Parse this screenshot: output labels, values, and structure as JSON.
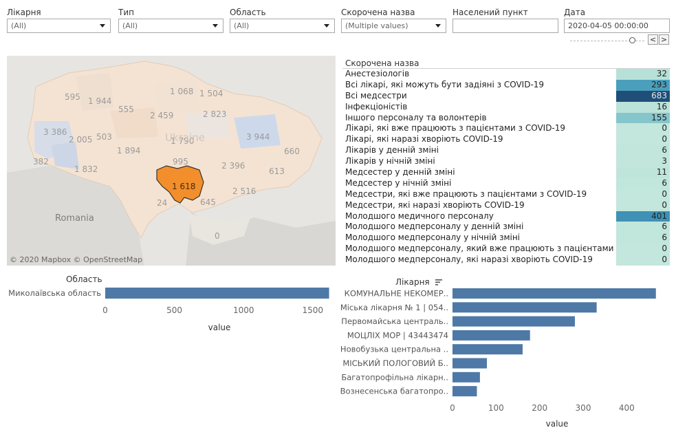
{
  "filters": [
    {
      "label": "Лікарня",
      "value": "(All)",
      "type": "dropdown"
    },
    {
      "label": "Тип",
      "value": "(All)",
      "type": "dropdown"
    },
    {
      "label": "Область",
      "value": "(All)",
      "type": "dropdown"
    },
    {
      "label": "Скорочена назва",
      "value": "(Multiple values)",
      "type": "dropdown"
    },
    {
      "label": "Населений пункт",
      "value": "",
      "type": "text"
    },
    {
      "label": "Дата",
      "value": "2020-04-05 00:00:00",
      "type": "date"
    }
  ],
  "date_nav": {
    "prev": "<",
    "next": ">"
  },
  "map": {
    "attribution": "© 2020 Mapbox © OpenStreetMap",
    "country_label": "Ukraine",
    "neighbor_label": "Romania",
    "highlight_color": "#f28e2b",
    "region_values": [
      "595",
      "1 944",
      "1 068",
      "1 504",
      "555",
      "2 459",
      "3 386",
      "2 005",
      "503",
      "2 823",
      "3 944",
      "1 894",
      "1 790",
      "382",
      "1 832",
      "995",
      "2 396",
      "660",
      "1 618",
      "613",
      "2 516",
      "24",
      "645",
      "0"
    ]
  },
  "table": {
    "header": "Скорочена назва",
    "rows": [
      {
        "label": "Анестезіологів",
        "value": "32",
        "color": "#b7e1d8"
      },
      {
        "label": "Всі лікарі, які можуть бути задіяні з COVID-19",
        "value": "293",
        "color": "#4a9fbc"
      },
      {
        "label": "Всі медсестри",
        "value": "683",
        "color": "#1f4e79"
      },
      {
        "label": "Інфекціоністів",
        "value": "16",
        "color": "#bce3d9"
      },
      {
        "label": "Іншого персоналу та волонтерів",
        "value": "155",
        "color": "#85c6cc"
      },
      {
        "label": "Лікарі, які вже працюють з пацієнтами з COVID-19",
        "value": "0",
        "color": "#c3e7dc"
      },
      {
        "label": "Лікарі, які наразі хворіють COVID-19",
        "value": "0",
        "color": "#c3e7dc"
      },
      {
        "label": "Лікарів у денній зміні",
        "value": "6",
        "color": "#c1e6db"
      },
      {
        "label": "Лікарів у нічній зміні",
        "value": "3",
        "color": "#c2e6db"
      },
      {
        "label": "Медсестер у денній зміні",
        "value": "11",
        "color": "#bfe5da"
      },
      {
        "label": "Медсестер у нічній зміні",
        "value": "6",
        "color": "#c1e6db"
      },
      {
        "label": "Медсестри, які вже працюють з пацієнтами з COVID-19",
        "value": "0",
        "color": "#c3e7dc"
      },
      {
        "label": "Медсестри, які наразі хворіють COVID-19",
        "value": "0",
        "color": "#c3e7dc"
      },
      {
        "label": "Молодшого медичного персоналу",
        "value": "401",
        "color": "#3f91b5"
      },
      {
        "label": "Молодшого медперсоналу у денній зміні",
        "value": "6",
        "color": "#c1e6db"
      },
      {
        "label": "Молодшого медперсоналу у нічній зміні",
        "value": "6",
        "color": "#c1e6db"
      },
      {
        "label": "Молодшого медперсоналу, який вже працюють з пацієнтами з CO..",
        "value": "0",
        "color": "#c3e7dc"
      },
      {
        "label": "Молодшого медперсоналу, які наразі хворіють COVID-19",
        "value": "0",
        "color": "#c3e7dc"
      }
    ]
  },
  "chart_data": [
    {
      "type": "bar",
      "orientation": "horizontal",
      "title": "Область",
      "xlabel": "value",
      "categories": [
        "Миколаївська область"
      ],
      "values": [
        1618
      ],
      "xlim": [
        0,
        1650
      ],
      "xticks": [
        0,
        500,
        1000,
        1500
      ],
      "bar_color": "#4e79a7"
    },
    {
      "type": "bar",
      "orientation": "horizontal",
      "title": "Лікарня",
      "xlabel": "value",
      "categories": [
        "КОМУНАЛЬНЕ НЕКОМЕР..",
        "Міська лікарня № 1 | 054..",
        "Первомайська централь..",
        "МОЦЛІХ МОР | 43443474",
        "Новобузька центральна ..",
        "МІСЬКИЙ ПОЛОГОВИЙ Б..",
        "Багатопрофільна лікарн..",
        "Вознесенська багатопро.."
      ],
      "values": [
        467,
        331,
        281,
        178,
        161,
        79,
        63,
        56
      ],
      "xlim": [
        0,
        480
      ],
      "xticks": [
        0,
        100,
        200,
        300,
        400
      ],
      "bar_color": "#4e79a7"
    }
  ]
}
